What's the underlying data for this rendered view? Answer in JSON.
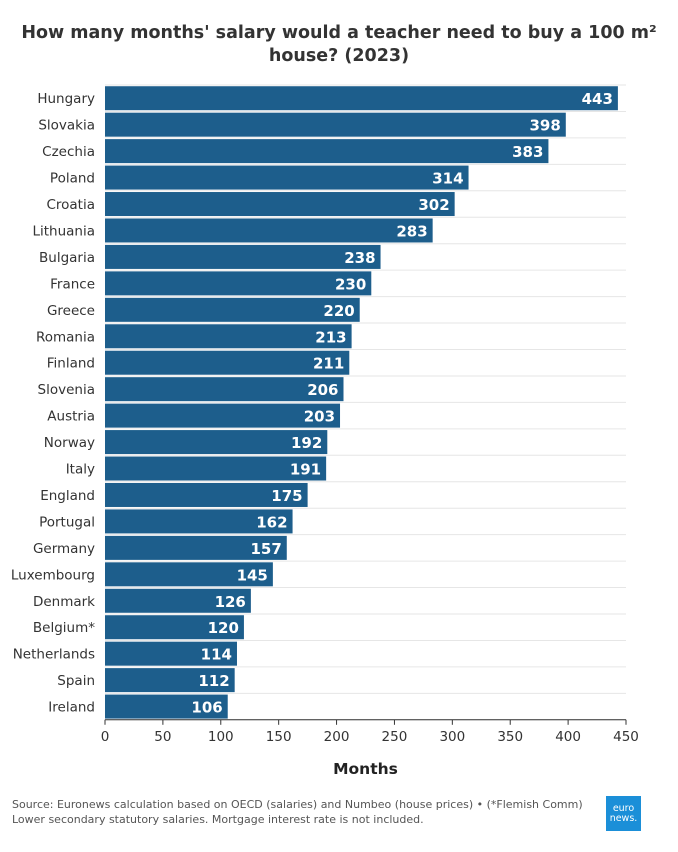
{
  "title": "How many months' salary would a teacher need to buy a 100 m² house? (2023)",
  "footer": {
    "source": "Source: Euronews calculation based on OECD (salaries) and Numbeo (house prices) • (*Flemish Comm) Lower secondary statutory salaries. Mortgage interest rate is not included.",
    "logo_line1": "euro",
    "logo_line2": "news."
  },
  "colors": {
    "bar": "#1d5e8c",
    "grid": "#e6e6e6",
    "axis": "#333333",
    "label": "#ffffff"
  },
  "chart_data": {
    "type": "bar",
    "orientation": "horizontal",
    "title": "How many months' salary would a teacher need to buy a 100 m² house? (2023)",
    "xlabel": "Months",
    "ylabel": "",
    "xlim": [
      0,
      450
    ],
    "xticks": [
      0,
      50,
      100,
      150,
      200,
      250,
      300,
      350,
      400,
      450
    ],
    "grid": true,
    "categories": [
      "Hungary",
      "Slovakia",
      "Czechia",
      "Poland",
      "Croatia",
      "Lithuania",
      "Bulgaria",
      "France",
      "Greece",
      "Romania",
      "Finland",
      "Slovenia",
      "Austria",
      "Norway",
      "Italy",
      "England",
      "Portugal",
      "Germany",
      "Luxembourg",
      "Denmark",
      "Belgium*",
      "Netherlands",
      "Spain",
      "Ireland"
    ],
    "values": [
      443,
      398,
      383,
      314,
      302,
      283,
      238,
      230,
      220,
      213,
      211,
      206,
      203,
      192,
      191,
      175,
      162,
      157,
      145,
      126,
      120,
      114,
      112,
      106
    ]
  }
}
